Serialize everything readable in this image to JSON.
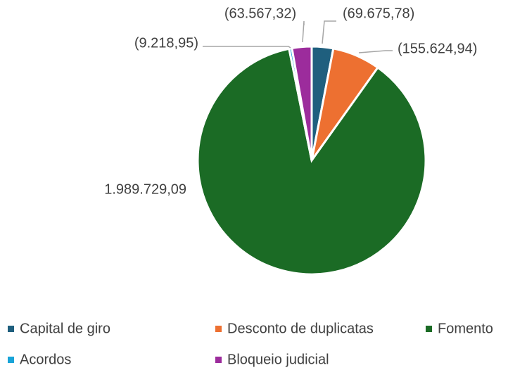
{
  "chart_data": {
    "type": "pie",
    "categories": [
      "Capital de giro",
      "Desconto de duplicatas",
      "Fomento",
      "Acordos",
      "Bloqueio judicial"
    ],
    "values": [
      -69675.78,
      -155624.94,
      1989729.09,
      -9218.95,
      -63567.32
    ],
    "value_labels": [
      "(69.675,78)",
      "(155.624,94)",
      "1.989.729,09",
      "(9.218,95)",
      "(63.567,32)"
    ],
    "colors": [
      "#1f5f7e",
      "#ed7031",
      "#1b6b25",
      "#19a4d8",
      "#9c2c9c"
    ],
    "legend": "bottom"
  }
}
